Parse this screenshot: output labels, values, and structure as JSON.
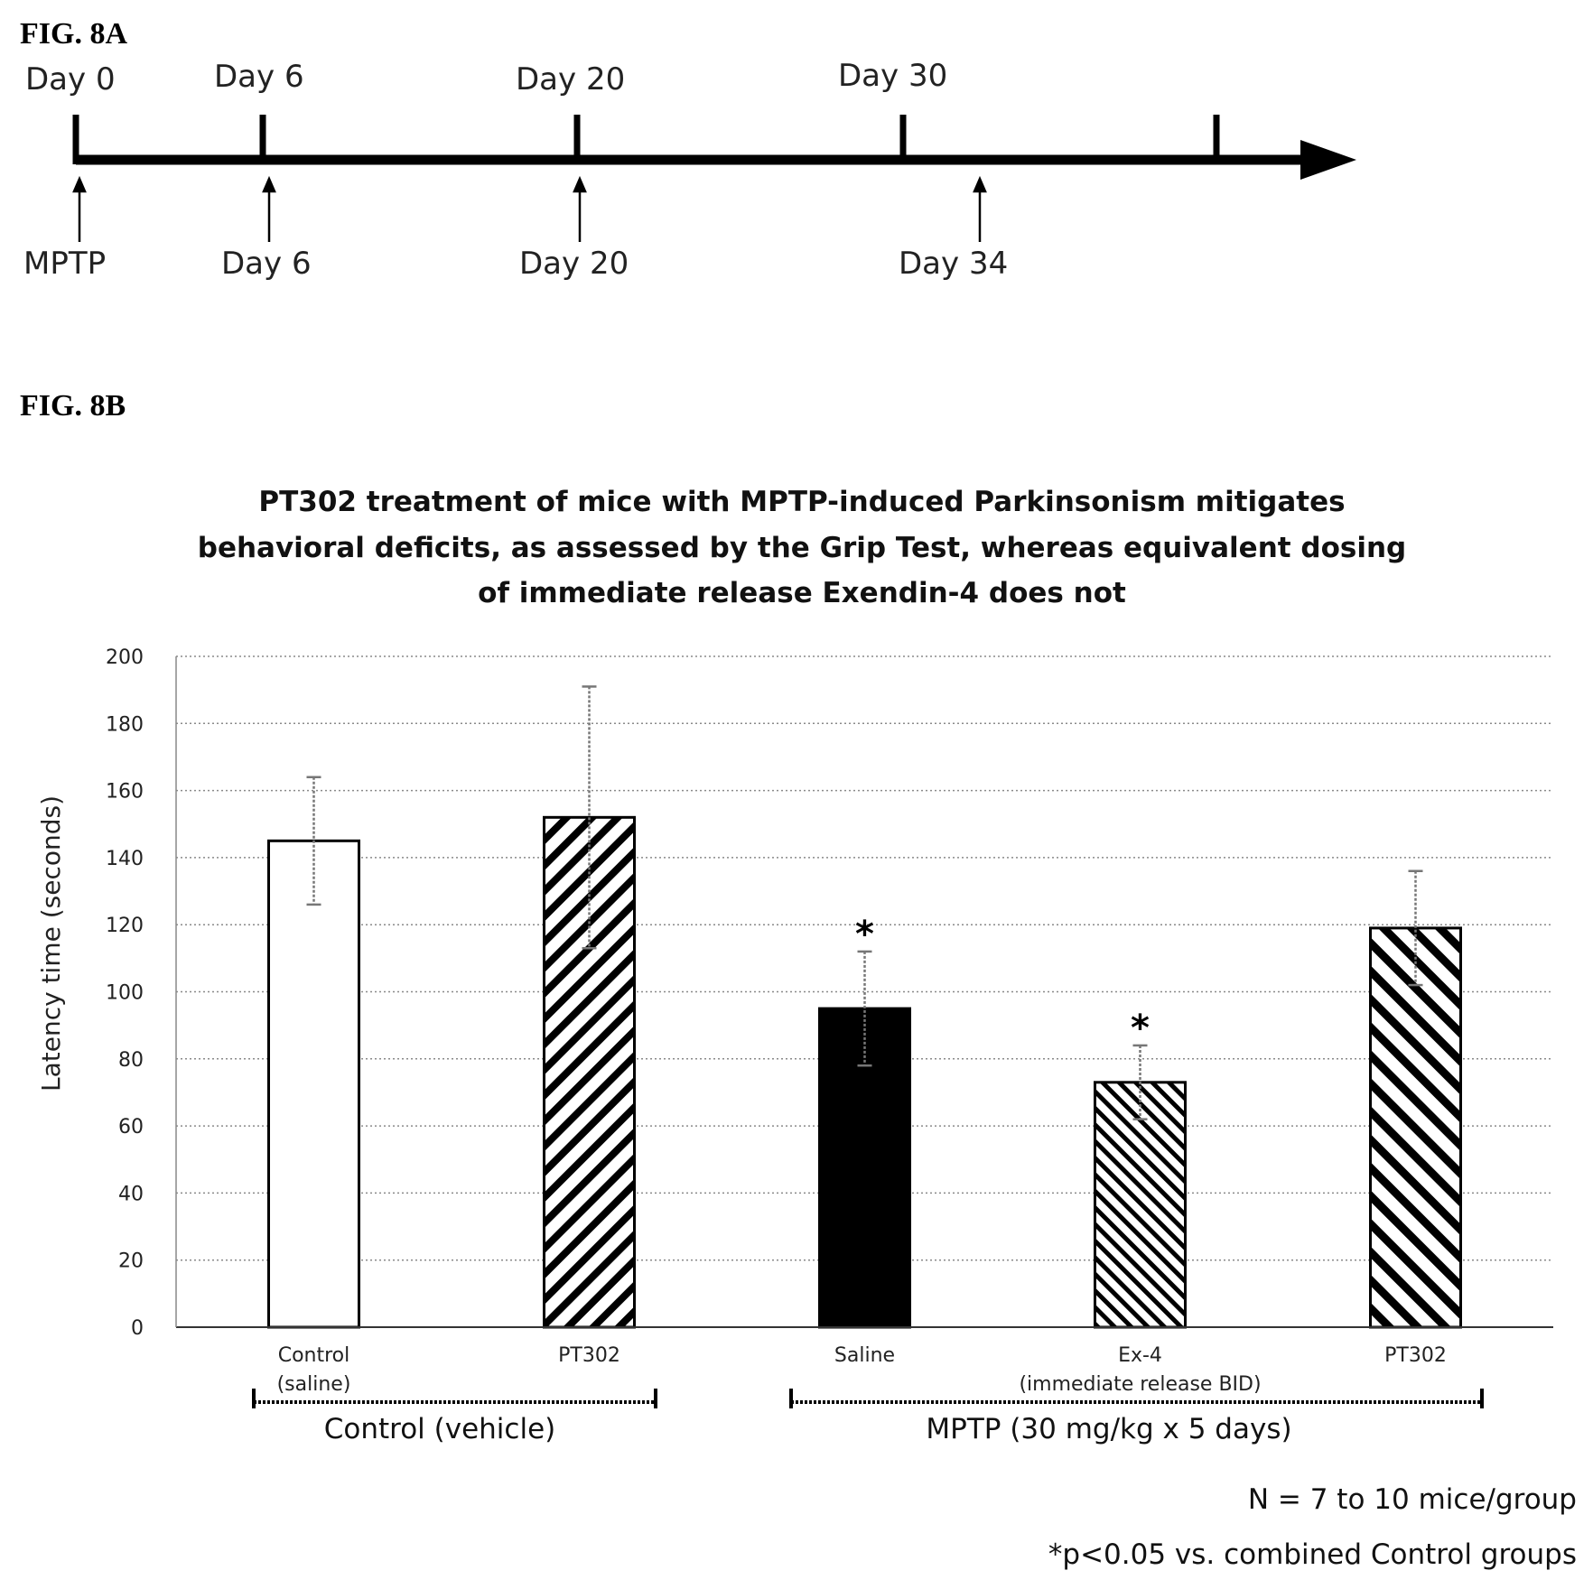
{
  "fig8a": {
    "label": "FIG. 8A",
    "top_labels": [
      "Day 0",
      "Day 6",
      "Day 20",
      "Day 30"
    ],
    "bottom_labels": [
      "MPTP",
      "Day 6",
      "Day 20",
      "Day 34"
    ]
  },
  "fig8b": {
    "label": "FIG. 8B",
    "title_lines": [
      "PT302 treatment of mice with MPTP-induced Parkinsonism mitigates",
      "behavioral deficits, as assessed by the Grip Test, whereas equivalent dosing",
      "of immediate release Exendin-4 does not"
    ],
    "groups": [
      {
        "label": "Control (vehicle)"
      },
      {
        "label": "MPTP (30 mg/kg x 5 days)"
      }
    ],
    "notes": [
      "N = 7 to 10 mice/group",
      "*p<0.05 vs. combined Control groups"
    ]
  },
  "chart_data": {
    "type": "bar",
    "title": "PT302 treatment of mice with MPTP-induced Parkinsonism mitigates behavioral deficits, as assessed by the Grip Test, whereas equivalent dosing of immediate release Exendin-4 does not",
    "ylabel": "Latency time (seconds)",
    "ylim": [
      0,
      200
    ],
    "yticks": [
      0,
      20,
      40,
      60,
      80,
      100,
      120,
      140,
      160,
      180,
      200
    ],
    "grid": true,
    "categories": [
      {
        "line1": "Control",
        "line2": "(saline)"
      },
      {
        "line1": "PT302",
        "line2": ""
      },
      {
        "line1": "Saline",
        "line2": ""
      },
      {
        "line1": "Ex-4",
        "line2": "(immediate release BID)"
      },
      {
        "line1": "PT302",
        "line2": ""
      }
    ],
    "values": [
      145,
      152,
      95,
      73,
      119
    ],
    "errors": [
      19,
      39,
      17,
      11,
      17
    ],
    "significant": [
      false,
      false,
      true,
      true,
      false
    ],
    "significance_marker": "*",
    "fills": [
      "white",
      "hatch-wide",
      "black",
      "hatch-back",
      "hatch-back-wide"
    ]
  }
}
